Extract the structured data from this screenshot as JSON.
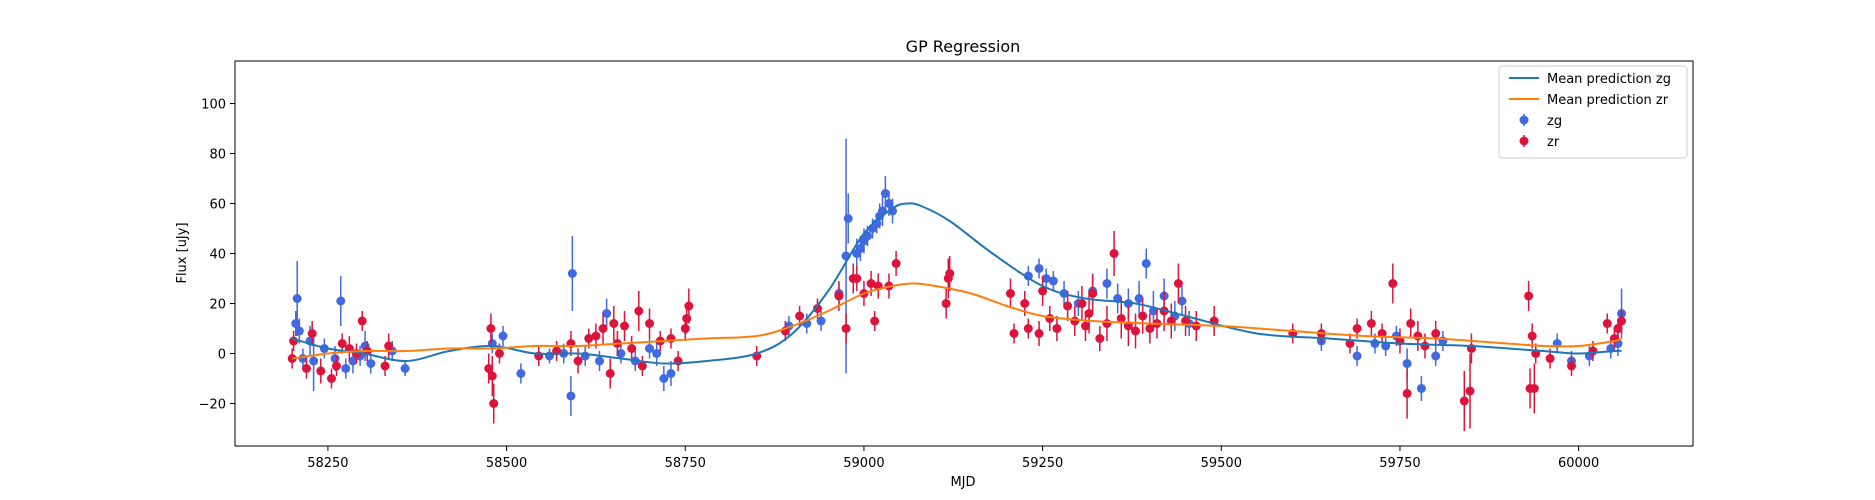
{
  "chart_data": {
    "type": "scatter",
    "title": "GP Regression",
    "xlabel": "MJD",
    "ylabel": "Flux [uJy]",
    "xlim": [
      58120,
      60160
    ],
    "ylim": [
      -37,
      117
    ],
    "xticks": [
      58250,
      58500,
      58750,
      59000,
      59250,
      59500,
      59750,
      60000
    ],
    "yticks": [
      -20,
      0,
      20,
      40,
      60,
      80,
      100
    ],
    "legend_position": "top-right",
    "grid": false,
    "series": [
      {
        "name": "Mean prediction zg",
        "kind": "line",
        "color": "#1f77b4",
        "x": [
          58200,
          58250,
          58300,
          58360,
          58420,
          58480,
          58540,
          58600,
          58660,
          58720,
          58780,
          58850,
          58900,
          58950,
          59000,
          59040,
          59060,
          59080,
          59120,
          59180,
          59250,
          59310,
          59380,
          59450,
          59550,
          59650,
          59750,
          59850,
          59950,
          60000,
          60050,
          60060
        ],
        "y": [
          6,
          2,
          0,
          -3,
          1,
          3,
          0,
          0,
          -2,
          -4,
          -3,
          0,
          8,
          25,
          48,
          58,
          60,
          59,
          53,
          40,
          27,
          22,
          20,
          15,
          8,
          6,
          4,
          3,
          1,
          0,
          1,
          1
        ]
      },
      {
        "name": "Mean prediction zr",
        "kind": "line",
        "color": "#ff7f0e",
        "x": [
          58200,
          58250,
          58300,
          58360,
          58420,
          58480,
          58540,
          58600,
          58660,
          58720,
          58780,
          58850,
          58900,
          58950,
          59000,
          59040,
          59070,
          59100,
          59150,
          59200,
          59250,
          59320,
          59400,
          59500,
          59600,
          59700,
          59800,
          59900,
          59950,
          60000,
          60050,
          60060
        ],
        "y": [
          -2,
          0,
          1,
          1,
          2,
          2,
          3,
          3,
          4,
          5,
          6,
          7,
          11,
          17,
          24,
          27,
          28,
          27,
          24,
          19,
          15,
          13,
          12,
          11,
          9,
          7,
          6,
          4,
          3,
          3,
          5,
          6
        ]
      },
      {
        "name": "zg",
        "kind": "errorbar",
        "color": "#4169e1",
        "points": [
          [
            58205,
            12,
            5
          ],
          [
            58207,
            22,
            15
          ],
          [
            58210,
            9,
            5
          ],
          [
            58215,
            -2,
            4
          ],
          [
            58225,
            5,
            6
          ],
          [
            58230,
            -3,
            12
          ],
          [
            58245,
            2,
            4
          ],
          [
            58260,
            -2,
            5
          ],
          [
            58268,
            21,
            10
          ],
          [
            58275,
            -6,
            4
          ],
          [
            58285,
            -3,
            5
          ],
          [
            58295,
            -1,
            4
          ],
          [
            58302,
            3,
            6
          ],
          [
            58310,
            -4,
            4
          ],
          [
            58340,
            1,
            4
          ],
          [
            58358,
            -6,
            3
          ],
          [
            58480,
            4,
            4
          ],
          [
            58495,
            7,
            4
          ],
          [
            58520,
            -8,
            4
          ],
          [
            58560,
            -1,
            3
          ],
          [
            58580,
            0,
            4
          ],
          [
            58590,
            -17,
            8
          ],
          [
            58592,
            32,
            15
          ],
          [
            58610,
            -1,
            4
          ],
          [
            58630,
            -3,
            4
          ],
          [
            58640,
            16,
            6
          ],
          [
            58660,
            0,
            4
          ],
          [
            58680,
            -3,
            4
          ],
          [
            58700,
            2,
            4
          ],
          [
            58710,
            0,
            5
          ],
          [
            58720,
            -10,
            5
          ],
          [
            58730,
            -8,
            5
          ],
          [
            58895,
            11,
            4
          ],
          [
            58920,
            12,
            4
          ],
          [
            58940,
            13,
            4
          ],
          [
            58965,
            24,
            4
          ],
          [
            58975,
            39,
            47
          ],
          [
            58978,
            54,
            10
          ],
          [
            58990,
            40,
            6
          ],
          [
            58995,
            42,
            5
          ],
          [
            59000,
            45,
            5
          ],
          [
            59005,
            47,
            4
          ],
          [
            59012,
            50,
            4
          ],
          [
            59018,
            52,
            4
          ],
          [
            59022,
            55,
            5
          ],
          [
            59026,
            57,
            6
          ],
          [
            59030,
            64,
            7
          ],
          [
            59035,
            60,
            5
          ],
          [
            59040,
            57,
            5
          ],
          [
            59230,
            31,
            4
          ],
          [
            59245,
            34,
            4
          ],
          [
            59255,
            30,
            4
          ],
          [
            59265,
            29,
            4
          ],
          [
            59280,
            24,
            5
          ],
          [
            59300,
            20,
            5
          ],
          [
            59320,
            25,
            6
          ],
          [
            59340,
            28,
            6
          ],
          [
            59355,
            22,
            6
          ],
          [
            59370,
            20,
            6
          ],
          [
            59385,
            22,
            7
          ],
          [
            59395,
            36,
            6
          ],
          [
            59405,
            17,
            8
          ],
          [
            59420,
            23,
            7
          ],
          [
            59435,
            15,
            6
          ],
          [
            59445,
            21,
            6
          ],
          [
            59455,
            12,
            5
          ],
          [
            59640,
            5,
            4
          ],
          [
            59690,
            -1,
            4
          ],
          [
            59715,
            4,
            4
          ],
          [
            59730,
            3,
            4
          ],
          [
            59745,
            7,
            4
          ],
          [
            59760,
            -4,
            6
          ],
          [
            59780,
            -14,
            5
          ],
          [
            59800,
            -1,
            4
          ],
          [
            59810,
            5,
            4
          ],
          [
            59970,
            4,
            4
          ],
          [
            59990,
            -3,
            4
          ],
          [
            60015,
            -1,
            4
          ],
          [
            60045,
            2,
            4
          ],
          [
            60055,
            4,
            5
          ],
          [
            60060,
            16,
            10
          ]
        ]
      },
      {
        "name": "zr",
        "kind": "errorbar",
        "color": "#dc143c",
        "points": [
          [
            58200,
            -2,
            4
          ],
          [
            58202,
            5,
            4
          ],
          [
            58220,
            -6,
            4
          ],
          [
            58228,
            8,
            5
          ],
          [
            58240,
            -7,
            5
          ],
          [
            58255,
            -10,
            4
          ],
          [
            58262,
            -5,
            4
          ],
          [
            58270,
            4,
            4
          ],
          [
            58280,
            2,
            5
          ],
          [
            58290,
            0,
            4
          ],
          [
            58298,
            13,
            4
          ],
          [
            58305,
            1,
            4
          ],
          [
            58330,
            -5,
            4
          ],
          [
            58335,
            3,
            5
          ],
          [
            58475,
            -6,
            6
          ],
          [
            58478,
            10,
            6
          ],
          [
            58480,
            -9,
            8
          ],
          [
            58482,
            -20,
            8
          ],
          [
            58490,
            0,
            4
          ],
          [
            58545,
            -1,
            4
          ],
          [
            58570,
            1,
            4
          ],
          [
            58590,
            4,
            5
          ],
          [
            58600,
            -3,
            5
          ],
          [
            58615,
            6,
            4
          ],
          [
            58625,
            7,
            5
          ],
          [
            58635,
            10,
            6
          ],
          [
            58645,
            -8,
            6
          ],
          [
            58650,
            12,
            7
          ],
          [
            58655,
            4,
            5
          ],
          [
            58665,
            11,
            6
          ],
          [
            58675,
            2,
            5
          ],
          [
            58685,
            17,
            8
          ],
          [
            58690,
            -5,
            4
          ],
          [
            58700,
            12,
            6
          ],
          [
            58715,
            5,
            4
          ],
          [
            58730,
            6,
            4
          ],
          [
            58740,
            -3,
            4
          ],
          [
            58750,
            10,
            5
          ],
          [
            58752,
            14,
            6
          ],
          [
            58755,
            19,
            7
          ],
          [
            58850,
            -1,
            4
          ],
          [
            58890,
            9,
            4
          ],
          [
            58910,
            15,
            4
          ],
          [
            58935,
            18,
            4
          ],
          [
            58965,
            23,
            6
          ],
          [
            58975,
            10,
            6
          ],
          [
            58985,
            30,
            6
          ],
          [
            58990,
            30,
            5
          ],
          [
            59000,
            24,
            5
          ],
          [
            59010,
            28,
            5
          ],
          [
            59015,
            13,
            4
          ],
          [
            59020,
            27,
            5
          ],
          [
            59035,
            27,
            5
          ],
          [
            59045,
            36,
            5
          ],
          [
            59115,
            20,
            6
          ],
          [
            59118,
            30,
            8
          ],
          [
            59120,
            32,
            7
          ],
          [
            59205,
            24,
            6
          ],
          [
            59210,
            8,
            4
          ],
          [
            59225,
            20,
            5
          ],
          [
            59230,
            10,
            4
          ],
          [
            59245,
            8,
            5
          ],
          [
            59250,
            25,
            6
          ],
          [
            59260,
            14,
            5
          ],
          [
            59270,
            10,
            5
          ],
          [
            59285,
            19,
            6
          ],
          [
            59295,
            13,
            6
          ],
          [
            59305,
            20,
            7
          ],
          [
            59310,
            11,
            6
          ],
          [
            59315,
            16,
            8
          ],
          [
            59320,
            24,
            8
          ],
          [
            59330,
            6,
            5
          ],
          [
            59340,
            12,
            7
          ],
          [
            59350,
            40,
            9
          ],
          [
            59360,
            14,
            8
          ],
          [
            59370,
            11,
            8
          ],
          [
            59380,
            9,
            7
          ],
          [
            59390,
            15,
            7
          ],
          [
            59400,
            10,
            6
          ],
          [
            59410,
            12,
            6
          ],
          [
            59420,
            17,
            8
          ],
          [
            59430,
            13,
            7
          ],
          [
            59440,
            28,
            8
          ],
          [
            59450,
            13,
            6
          ],
          [
            59465,
            11,
            6
          ],
          [
            59490,
            13,
            6
          ],
          [
            59600,
            8,
            4
          ],
          [
            59640,
            8,
            4
          ],
          [
            59680,
            4,
            4
          ],
          [
            59690,
            10,
            4
          ],
          [
            59710,
            12,
            5
          ],
          [
            59725,
            8,
            4
          ],
          [
            59740,
            28,
            8
          ],
          [
            59750,
            5,
            5
          ],
          [
            59760,
            -16,
            10
          ],
          [
            59765,
            12,
            6
          ],
          [
            59775,
            7,
            6
          ],
          [
            59785,
            3,
            5
          ],
          [
            59800,
            8,
            5
          ],
          [
            59840,
            -19,
            12
          ],
          [
            59848,
            -15,
            15
          ],
          [
            59850,
            2,
            6
          ],
          [
            59930,
            23,
            6
          ],
          [
            59932,
            -14,
            8
          ],
          [
            59935,
            7,
            5
          ],
          [
            59938,
            -14,
            10
          ],
          [
            59940,
            0,
            4
          ],
          [
            59960,
            -2,
            4
          ],
          [
            59990,
            -5,
            4
          ],
          [
            60020,
            1,
            4
          ],
          [
            60040,
            12,
            4
          ],
          [
            60050,
            6,
            4
          ],
          [
            60055,
            10,
            4
          ],
          [
            60060,
            13,
            5
          ]
        ]
      }
    ]
  }
}
